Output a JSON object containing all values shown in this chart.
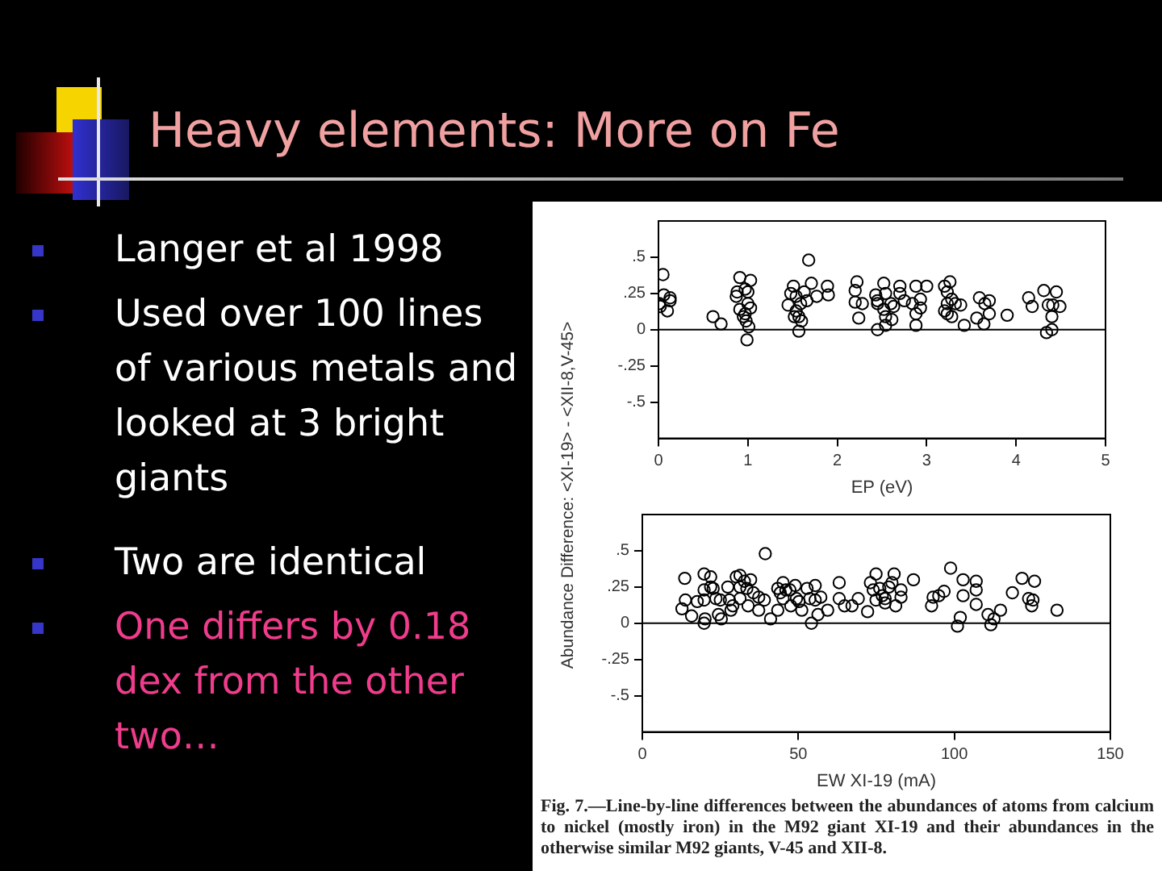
{
  "chart_data": [
    {
      "type": "other",
      "title": "Heavy elements: More on Fe",
      "annotations": [
        "Langer et al 1998",
        "Used over 100 lines of various metals and looked at 3 bright giants",
        "Two are identical",
        "One differs by 0.18 dex from the other two…"
      ]
    },
    {
      "type": "scatter",
      "xlabel": "EP (eV)",
      "ylabel": "Abundance Difference: <XI-19> - <XII-8,V-45>",
      "marker": "circle",
      "xlim": [
        0,
        5
      ],
      "xticks": [
        0,
        1,
        2,
        3,
        4,
        5
      ],
      "ylim": [
        -0.75,
        0.75
      ],
      "yticks": [
        {
          "value": -0.5,
          "label": "-.5"
        },
        {
          "value": -0.25,
          "label": "-.25"
        },
        0,
        {
          "value": 0.25,
          "label": ".25"
        },
        {
          "value": 0.5,
          "label": ".5"
        }
      ],
      "ref_lines": [
        {
          "axis": "y",
          "value": 0,
          "color": "#000000"
        }
      ],
      "series": [
        {
          "color": "#000000",
          "x": [
            0.05,
            0.01,
            0.06,
            0.02,
            0.1,
            0.13,
            0.13,
            0.61,
            0.7,
            0.91,
            0.88,
            0.87,
            0.97,
            1.0,
            1.03,
            0.91,
            0.95,
            0.98,
            1.0,
            1.03,
            1.01,
            0.99,
            0.97,
            1.45,
            1.51,
            1.48,
            1.54,
            1.52,
            1.57,
            1.6,
            1.63,
            1.59,
            1.68,
            1.71,
            1.66,
            1.77,
            1.89,
            1.9,
            1.54,
            1.57,
            2.22,
            2.2,
            2.2,
            2.24,
            2.28,
            2.43,
            2.45,
            2.45,
            2.45,
            2.52,
            2.54,
            2.52,
            2.54,
            2.54,
            2.6,
            2.61,
            2.63,
            2.7,
            2.7,
            2.75,
            2.88,
            2.84,
            2.88,
            2.88,
            2.93,
            2.93,
            3.0,
            3.2,
            3.23,
            3.23,
            3.26,
            3.28,
            3.2,
            3.23,
            3.28,
            3.32,
            3.38,
            3.42,
            3.59,
            3.56,
            3.64,
            3.65,
            3.7,
            3.7,
            3.9,
            4.14,
            4.18,
            4.31,
            4.36,
            4.34,
            4.41,
            4.4,
            4.4,
            4.45,
            4.49
          ],
          "values": [
            0.38,
            0.18,
            0.24,
            0.16,
            0.13,
            0.2,
            0.22,
            0.09,
            0.04,
            0.36,
            0.26,
            0.23,
            0.28,
            0.26,
            0.34,
            0.14,
            0.09,
            0.06,
            0.18,
            0.15,
            0.02,
            -0.07,
            0.11,
            0.17,
            0.3,
            0.25,
            0.13,
            0.09,
            -0.01,
            0.06,
            0.26,
            0.18,
            0.48,
            0.32,
            0.2,
            0.23,
            0.3,
            0.24,
            0.23,
            0.09,
            0.33,
            0.27,
            0.19,
            0.08,
            0.18,
            0.24,
            0.18,
            0.2,
            0.0,
            0.32,
            0.25,
            0.14,
            0.09,
            0.03,
            0.18,
            0.07,
            0.16,
            0.3,
            0.25,
            0.2,
            0.3,
            0.18,
            0.11,
            0.03,
            0.21,
            0.15,
            0.3,
            0.3,
            0.26,
            0.18,
            0.33,
            0.21,
            0.13,
            0.11,
            0.09,
            0.18,
            0.17,
            0.03,
            0.22,
            0.08,
            0.04,
            0.18,
            0.2,
            0.11,
            0.1,
            0.22,
            0.16,
            0.27,
            0.17,
            -0.02,
            0.17,
            0.09,
            0.0,
            0.26,
            0.16
          ]
        }
      ]
    },
    {
      "type": "scatter",
      "xlabel": "EW XI-19 (mA)",
      "marker": "circle",
      "xlim": [
        0,
        150
      ],
      "xticks": [
        0,
        50,
        100,
        150
      ],
      "ylim": [
        -0.75,
        0.75
      ],
      "yticks": [
        {
          "value": -0.5,
          "label": "-.5"
        },
        {
          "value": -0.25,
          "label": "-.25"
        },
        0,
        {
          "value": 0.25,
          "label": ".25"
        },
        {
          "value": 0.5,
          "label": ".5"
        }
      ],
      "ref_lines": [
        {
          "axis": "y",
          "value": 0,
          "color": "#000000"
        }
      ],
      "annotations": [
        "Fig. 7.—Line-by-line differences between the abundances of atoms from calcium to nickel (mostly iron) in the M92 giant XI-19 and their abundances in the otherwise similar M92 giants, V-45 and XII-8."
      ],
      "series": [
        {
          "color": "#000000",
          "x": [
            13.6,
            12.7,
            13.8,
            15.8,
            17.6,
            19.8,
            19.8,
            19.8,
            20.1,
            19.8,
            21.9,
            21.9,
            22.7,
            23.6,
            24.4,
            25.3,
            25,
            27.4,
            27.9,
            28.4,
            29,
            30.1,
            31.3,
            31.3,
            31.3,
            32.7,
            33.5,
            33.9,
            34.7,
            35.6,
            37.3,
            37.3,
            39.1,
            39.4,
            41.1,
            43.4,
            43.4,
            44.2,
            45.1,
            45.1,
            46,
            47.3,
            47.6,
            49,
            49.4,
            50.2,
            51.1,
            52.8,
            53.7,
            54.2,
            55.4,
            55.4,
            56.3,
            57.2,
            59.4,
            63.1,
            63.1,
            64.8,
            67.2,
            69.2,
            72.2,
            73.1,
            74,
            74.9,
            74.9,
            76.1,
            76.9,
            77.8,
            77.8,
            79,
            80,
            80.7,
            81.2,
            82.9,
            82.9,
            86.9,
            92.7,
            93.2,
            95,
            96.7,
            98.8,
            101,
            101.9,
            102.8,
            102.8,
            107,
            107,
            107,
            110.8,
            111.7,
            112.7,
            114.8,
            118.6,
            121.7,
            123.8,
            124.8,
            125.2,
            125.7,
            132.9
          ],
          "values": [
            0.31,
            0.1,
            0.16,
            0.05,
            0.15,
            0.34,
            0.23,
            0.16,
            0.03,
            0.0,
            0.32,
            0.25,
            0.24,
            0.17,
            0.06,
            0.03,
            0.16,
            0.25,
            0.16,
            0.09,
            0.12,
            0.32,
            0.33,
            0.25,
            0.17,
            0.29,
            0.24,
            0.12,
            0.3,
            0.21,
            0.09,
            0.18,
            0.16,
            0.48,
            0.03,
            0.09,
            0.24,
            0.21,
            0.17,
            0.28,
            0.23,
            0.23,
            0.12,
            0.26,
            0.17,
            0.15,
            0.09,
            0.24,
            0.17,
            0.0,
            0.26,
            0.16,
            0.06,
            0.18,
            0.09,
            0.28,
            0.17,
            0.12,
            0.12,
            0.17,
            0.08,
            0.28,
            0.23,
            0.34,
            0.16,
            0.24,
            0.19,
            0.17,
            0.14,
            0.25,
            0.28,
            0.34,
            0.12,
            0.23,
            0.18,
            0.3,
            0.12,
            0.18,
            0.19,
            0.22,
            0.38,
            -0.02,
            0.04,
            0.3,
            0.19,
            0.29,
            0.23,
            0.13,
            0.06,
            -0.01,
            0.03,
            0.09,
            0.21,
            0.31,
            0.17,
            0.12,
            0.16,
            0.29,
            0.09
          ]
        }
      ]
    }
  ]
}
